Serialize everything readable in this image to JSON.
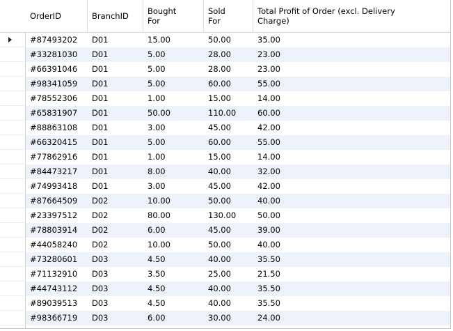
{
  "grid": {
    "columns": [
      {
        "key": "order_id",
        "label": "OrderID"
      },
      {
        "key": "branch_id",
        "label": "BranchID"
      },
      {
        "key": "bought_for",
        "label": "Bought For"
      },
      {
        "key": "sold_for",
        "label": "Sold For"
      },
      {
        "key": "total_profit",
        "label": "Total Profit of Order (excl. Delivery Charge)"
      }
    ],
    "rows": [
      [
        "#87493202",
        "D01",
        "15.00",
        "50.00",
        "35.00"
      ],
      [
        "#33281030",
        "D01",
        "5.00",
        "28.00",
        "23.00"
      ],
      [
        "#66391046",
        "D01",
        "5.00",
        "28.00",
        "23.00"
      ],
      [
        "#98341059",
        "D01",
        "5.00",
        "60.00",
        "55.00"
      ],
      [
        "#78552306",
        "D01",
        "1.00",
        "15.00",
        "14.00"
      ],
      [
        "#65831907",
        "D01",
        "50.00",
        "110.00",
        "60.00"
      ],
      [
        "#88863108",
        "D01",
        "3.00",
        "45.00",
        "42.00"
      ],
      [
        "#66320415",
        "D01",
        "5.00",
        "60.00",
        "55.00"
      ],
      [
        "#77862916",
        "D01",
        "1.00",
        "15.00",
        "14.00"
      ],
      [
        "#84473217",
        "D01",
        "8.00",
        "40.00",
        "32.00"
      ],
      [
        "#74993418",
        "D01",
        "3.00",
        "45.00",
        "42.00"
      ],
      [
        "#87664509",
        "D02",
        "10.00",
        "50.00",
        "40.00"
      ],
      [
        "#23397512",
        "D02",
        "80.00",
        "130.00",
        "50.00"
      ],
      [
        "#78803914",
        "D02",
        "6.00",
        "45.00",
        "39.00"
      ],
      [
        "#44058240",
        "D02",
        "10.00",
        "50.00",
        "40.00"
      ],
      [
        "#73280601",
        "D03",
        "4.50",
        "40.00",
        "35.50"
      ],
      [
        "#71132910",
        "D03",
        "3.50",
        "25.00",
        "21.50"
      ],
      [
        "#44743112",
        "D03",
        "4.50",
        "40.00",
        "35.50"
      ],
      [
        "#89039513",
        "D03",
        "4.50",
        "40.00",
        "35.50"
      ],
      [
        "#98366719",
        "D03",
        "6.00",
        "30.00",
        "24.00"
      ]
    ],
    "current_row_index": 0,
    "row_indicator_icon": "current-row-arrow-icon",
    "colors": {
      "alt_row": "#eef3fb",
      "border": "#d2d2d2"
    }
  }
}
